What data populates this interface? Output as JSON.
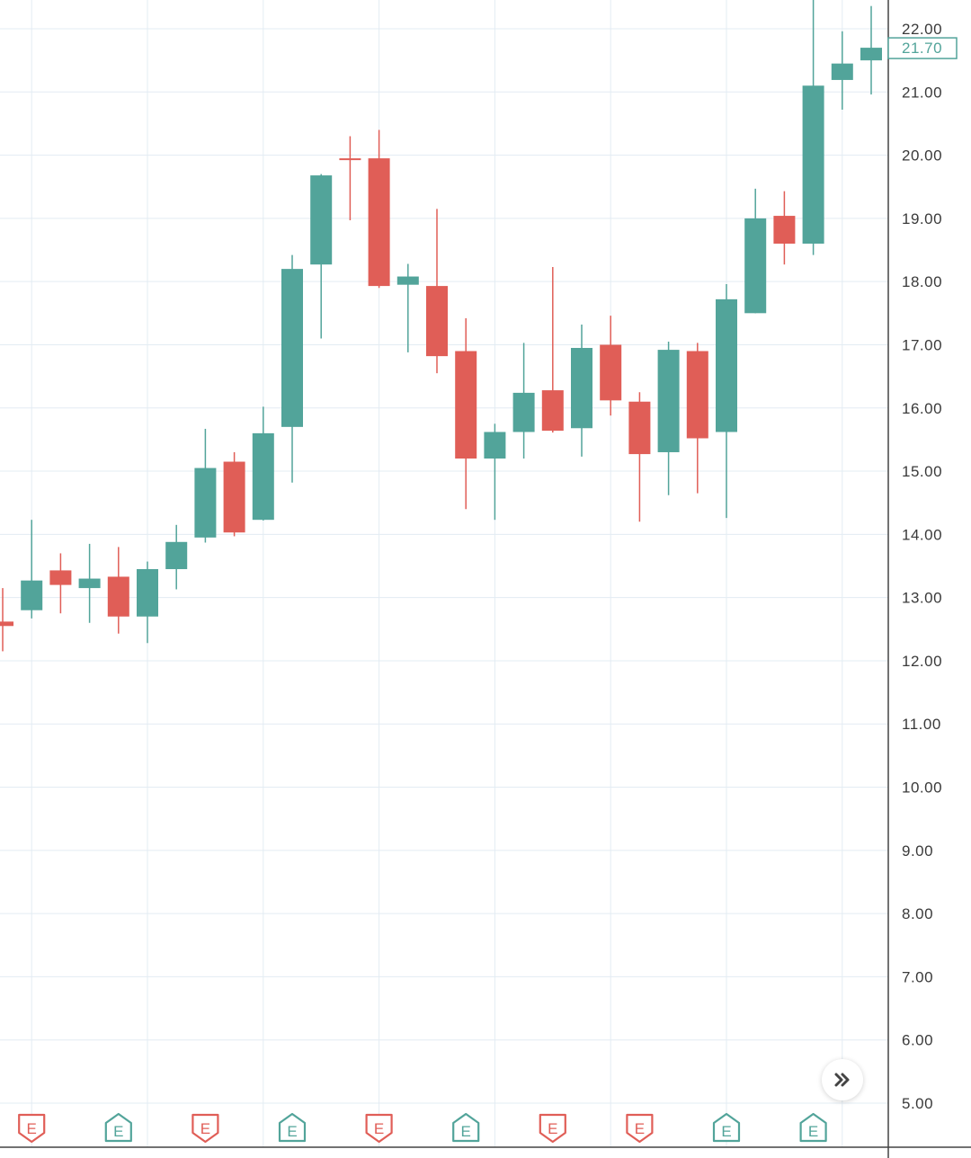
{
  "chart_data": {
    "type": "candlestick",
    "title": "",
    "ylim": [
      5,
      22
    ],
    "yticks": [
      "22.00",
      "21.00",
      "20.00",
      "19.00",
      "18.00",
      "17.00",
      "16.00",
      "15.00",
      "14.00",
      "13.00",
      "12.00",
      "11.00",
      "10.00",
      "9.00",
      "8.00",
      "7.00",
      "6.00",
      "5.00"
    ],
    "grid": true,
    "last_price": "21.70",
    "colors": {
      "up": "#52a49a",
      "down": "#e05e57",
      "grid": "#e3ecf3",
      "axis": "#444444"
    },
    "candles": [
      {
        "o": 12.62,
        "h": 13.15,
        "l": 12.15,
        "c": 12.55
      },
      {
        "o": 12.8,
        "h": 14.23,
        "l": 12.67,
        "c": 13.27
      },
      {
        "o": 13.43,
        "h": 13.7,
        "l": 12.75,
        "c": 13.2
      },
      {
        "o": 13.15,
        "h": 13.85,
        "l": 12.6,
        "c": 13.3
      },
      {
        "o": 13.33,
        "h": 13.8,
        "l": 12.43,
        "c": 12.7
      },
      {
        "o": 12.7,
        "h": 13.57,
        "l": 12.28,
        "c": 13.45
      },
      {
        "o": 13.45,
        "h": 14.15,
        "l": 13.13,
        "c": 13.88
      },
      {
        "o": 13.95,
        "h": 15.67,
        "l": 13.87,
        "c": 15.05
      },
      {
        "o": 15.15,
        "h": 15.3,
        "l": 13.97,
        "c": 14.03
      },
      {
        "o": 14.23,
        "h": 16.02,
        "l": 14.22,
        "c": 15.6
      },
      {
        "o": 15.7,
        "h": 18.42,
        "l": 14.82,
        "c": 18.2
      },
      {
        "o": 18.27,
        "h": 19.7,
        "l": 17.1,
        "c": 19.68
      },
      {
        "o": 19.95,
        "h": 20.3,
        "l": 18.97,
        "c": 19.93
      },
      {
        "o": 19.95,
        "h": 20.4,
        "l": 17.9,
        "c": 17.93
      },
      {
        "o": 17.95,
        "h": 18.28,
        "l": 16.88,
        "c": 18.08
      },
      {
        "o": 17.93,
        "h": 19.15,
        "l": 16.55,
        "c": 16.82
      },
      {
        "o": 16.9,
        "h": 17.42,
        "l": 14.4,
        "c": 15.2
      },
      {
        "o": 15.2,
        "h": 15.75,
        "l": 14.23,
        "c": 15.62
      },
      {
        "o": 15.62,
        "h": 17.03,
        "l": 15.2,
        "c": 16.24
      },
      {
        "o": 16.28,
        "h": 18.23,
        "l": 15.61,
        "c": 15.64
      },
      {
        "o": 15.68,
        "h": 17.32,
        "l": 15.23,
        "c": 16.95
      },
      {
        "o": 17.0,
        "h": 17.46,
        "l": 15.88,
        "c": 16.12
      },
      {
        "o": 16.1,
        "h": 16.25,
        "l": 14.2,
        "c": 15.27
      },
      {
        "o": 15.3,
        "h": 17.05,
        "l": 14.62,
        "c": 16.92
      },
      {
        "o": 16.9,
        "h": 17.03,
        "l": 14.65,
        "c": 15.52
      },
      {
        "o": 15.62,
        "h": 17.96,
        "l": 14.26,
        "c": 17.72
      },
      {
        "o": 17.5,
        "h": 19.47,
        "l": 17.5,
        "c": 19.0
      },
      {
        "o": 19.04,
        "h": 19.43,
        "l": 18.27,
        "c": 18.6
      },
      {
        "o": 18.6,
        "h": 22.5,
        "l": 18.42,
        "c": 21.1
      },
      {
        "o": 21.19,
        "h": 21.96,
        "l": 20.72,
        "c": 21.45
      },
      {
        "o": 21.5,
        "h": 22.36,
        "l": 20.96,
        "c": 21.7
      }
    ],
    "earnings_markers": [
      {
        "candle": 1,
        "label": "E",
        "kind": "down"
      },
      {
        "candle": 4,
        "label": "E",
        "kind": "up"
      },
      {
        "candle": 7,
        "label": "E",
        "kind": "down"
      },
      {
        "candle": 10,
        "label": "E",
        "kind": "up"
      },
      {
        "candle": 13,
        "label": "E",
        "kind": "down"
      },
      {
        "candle": 16,
        "label": "E",
        "kind": "up"
      },
      {
        "candle": 19,
        "label": "E",
        "kind": "down"
      },
      {
        "candle": 22,
        "label": "E",
        "kind": "down"
      },
      {
        "candle": 25,
        "label": "E",
        "kind": "up"
      },
      {
        "candle": 28,
        "label": "E",
        "kind": "up"
      }
    ]
  },
  "controls": {
    "scroll_to_latest_icon": "double-chevron-right-icon"
  }
}
